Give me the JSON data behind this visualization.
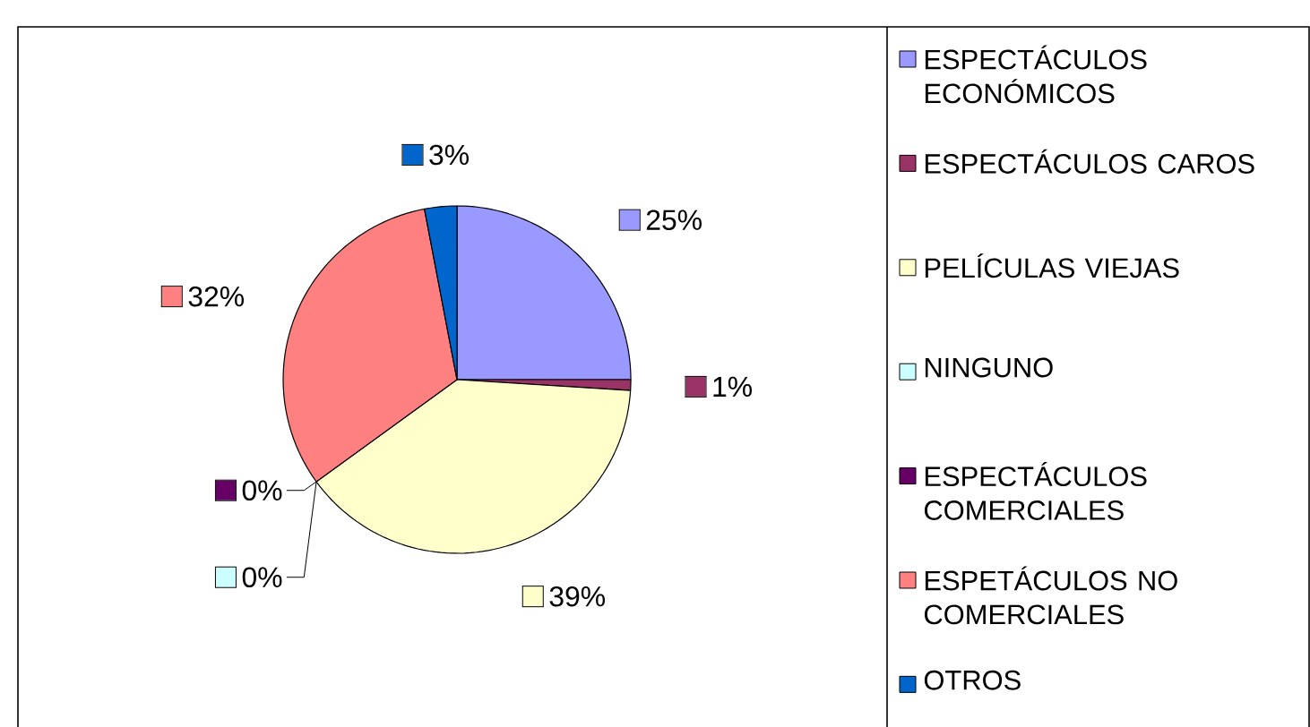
{
  "chart_data": {
    "type": "pie",
    "categories": [
      "ESPECTÁCULOS ECONÓMICOS",
      "ESPECTÁCULOS CAROS",
      "PELÍCULAS VIEJAS",
      "NINGUNO",
      "ESPECTÁCULOS COMERCIALES",
      "ESPETÁCULOS NO COMERCIALES",
      "OTROS"
    ],
    "values": [
      25,
      1,
      39,
      0,
      0,
      32,
      3
    ],
    "value_labels": [
      "25%",
      "1%",
      "39%",
      "0%",
      "0%",
      "32%",
      "3%"
    ],
    "colors": [
      "#9999ff",
      "#993366",
      "#ffffcc",
      "#ccffff",
      "#660066",
      "#ff8080",
      "#0066cc"
    ],
    "legend": "right"
  }
}
